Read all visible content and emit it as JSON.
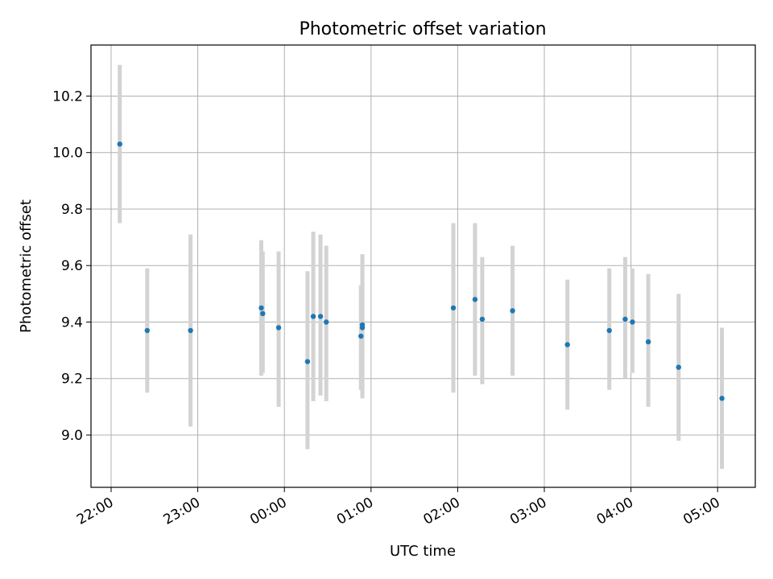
{
  "chart_data": {
    "type": "scatter",
    "title": "Photometric offset variation",
    "xlabel": "UTC time",
    "ylabel": "Photometric offset",
    "x_ticks": [
      "22:00",
      "23:00",
      "00:00",
      "01:00",
      "02:00",
      "03:00",
      "04:00",
      "05:00"
    ],
    "y_ticks": [
      "9.0",
      "9.2",
      "9.4",
      "9.6",
      "9.8",
      "10.0",
      "10.2"
    ],
    "grid": true,
    "colors": {
      "point": "#1f77b4",
      "errorbar": "#d3d3d3",
      "grid": "#b0b0b0"
    },
    "series": [
      {
        "points": [
          {
            "x": "22:06",
            "y": 10.03,
            "low": 9.75,
            "high": 10.31
          },
          {
            "x": "22:25",
            "y": 9.37,
            "low": 9.15,
            "high": 9.59
          },
          {
            "x": "22:55",
            "y": 9.37,
            "low": 9.03,
            "high": 9.71
          },
          {
            "x": "23:44",
            "y": 9.45,
            "low": 9.21,
            "high": 9.69
          },
          {
            "x": "23:45",
            "y": 9.43,
            "low": 9.22,
            "high": 9.65
          },
          {
            "x": "23:56",
            "y": 9.38,
            "low": 9.1,
            "high": 9.65
          },
          {
            "x": "00:16",
            "y": 9.26,
            "low": 8.95,
            "high": 9.58
          },
          {
            "x": "00:20",
            "y": 9.42,
            "low": 9.12,
            "high": 9.72
          },
          {
            "x": "00:25",
            "y": 9.42,
            "low": 9.14,
            "high": 9.71
          },
          {
            "x": "00:29",
            "y": 9.4,
            "low": 9.12,
            "high": 9.67
          },
          {
            "x": "00:53",
            "y": 9.35,
            "low": 9.16,
            "high": 9.53
          },
          {
            "x": "00:54",
            "y": 9.38,
            "low": 9.13,
            "high": 9.64
          },
          {
            "x": "00:54",
            "y": 9.39,
            "low": 9.14,
            "high": 9.63
          },
          {
            "x": "01:57",
            "y": 9.45,
            "low": 9.15,
            "high": 9.75
          },
          {
            "x": "02:12",
            "y": 9.48,
            "low": 9.21,
            "high": 9.75
          },
          {
            "x": "02:17",
            "y": 9.41,
            "low": 9.18,
            "high": 9.63
          },
          {
            "x": "02:38",
            "y": 9.44,
            "low": 9.21,
            "high": 9.67
          },
          {
            "x": "03:16",
            "y": 9.32,
            "low": 9.09,
            "high": 9.55
          },
          {
            "x": "03:45",
            "y": 9.37,
            "low": 9.16,
            "high": 9.59
          },
          {
            "x": "03:56",
            "y": 9.41,
            "low": 9.2,
            "high": 9.63
          },
          {
            "x": "04:01",
            "y": 9.4,
            "low": 9.22,
            "high": 9.59
          },
          {
            "x": "04:12",
            "y": 9.33,
            "low": 9.1,
            "high": 9.57
          },
          {
            "x": "04:33",
            "y": 9.24,
            "low": 8.98,
            "high": 9.5
          },
          {
            "x": "05:03",
            "y": 9.13,
            "low": 8.88,
            "high": 9.38
          }
        ]
      }
    ]
  }
}
